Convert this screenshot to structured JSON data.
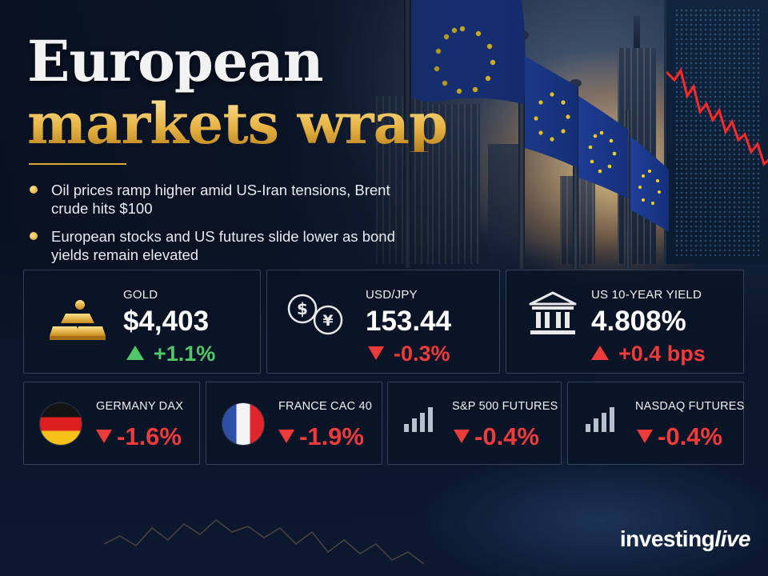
{
  "title": {
    "line1": "European",
    "line2": "markets wrap"
  },
  "bullets": [
    "Oil prices ramp higher amid US-Iran tensions, Brent crude hits $100",
    "European stocks and US futures slide lower as bond yields remain elevated"
  ],
  "cards_top": [
    {
      "label": "GOLD",
      "value": "$4,403",
      "change": "+1.1%",
      "direction": "up",
      "icon": "gold-bars-icon"
    },
    {
      "label": "USD/JPY",
      "value": "153.44",
      "change": "-0.3%",
      "direction": "down",
      "icon": "currency-exchange-icon"
    },
    {
      "label": "US 10-YEAR YIELD",
      "value": "4.808%",
      "change": "+0.4 bps",
      "direction": "up",
      "icon": "bank-building-icon"
    }
  ],
  "cards_bottom": [
    {
      "label": "GERMANY DAX",
      "change": "-1.6%",
      "direction": "down",
      "icon": "germany-flag-icon"
    },
    {
      "label": "FRANCE CAC 40",
      "change": "-1.9%",
      "direction": "down",
      "icon": "france-flag-icon"
    },
    {
      "label": "S&P 500 FUTURES",
      "change": "-0.4%",
      "direction": "down",
      "icon": "signal-bars-icon"
    },
    {
      "label": "NASDAQ FUTURES",
      "change": "-0.4%",
      "direction": "down",
      "icon": "signal-bars-icon"
    }
  ],
  "logo": {
    "part1": "investing",
    "part2": "live"
  },
  "colors": {
    "gold_accent": "#e9b84a",
    "up": "#52c76a",
    "down": "#ee3b3b",
    "background": "#0b1629"
  }
}
